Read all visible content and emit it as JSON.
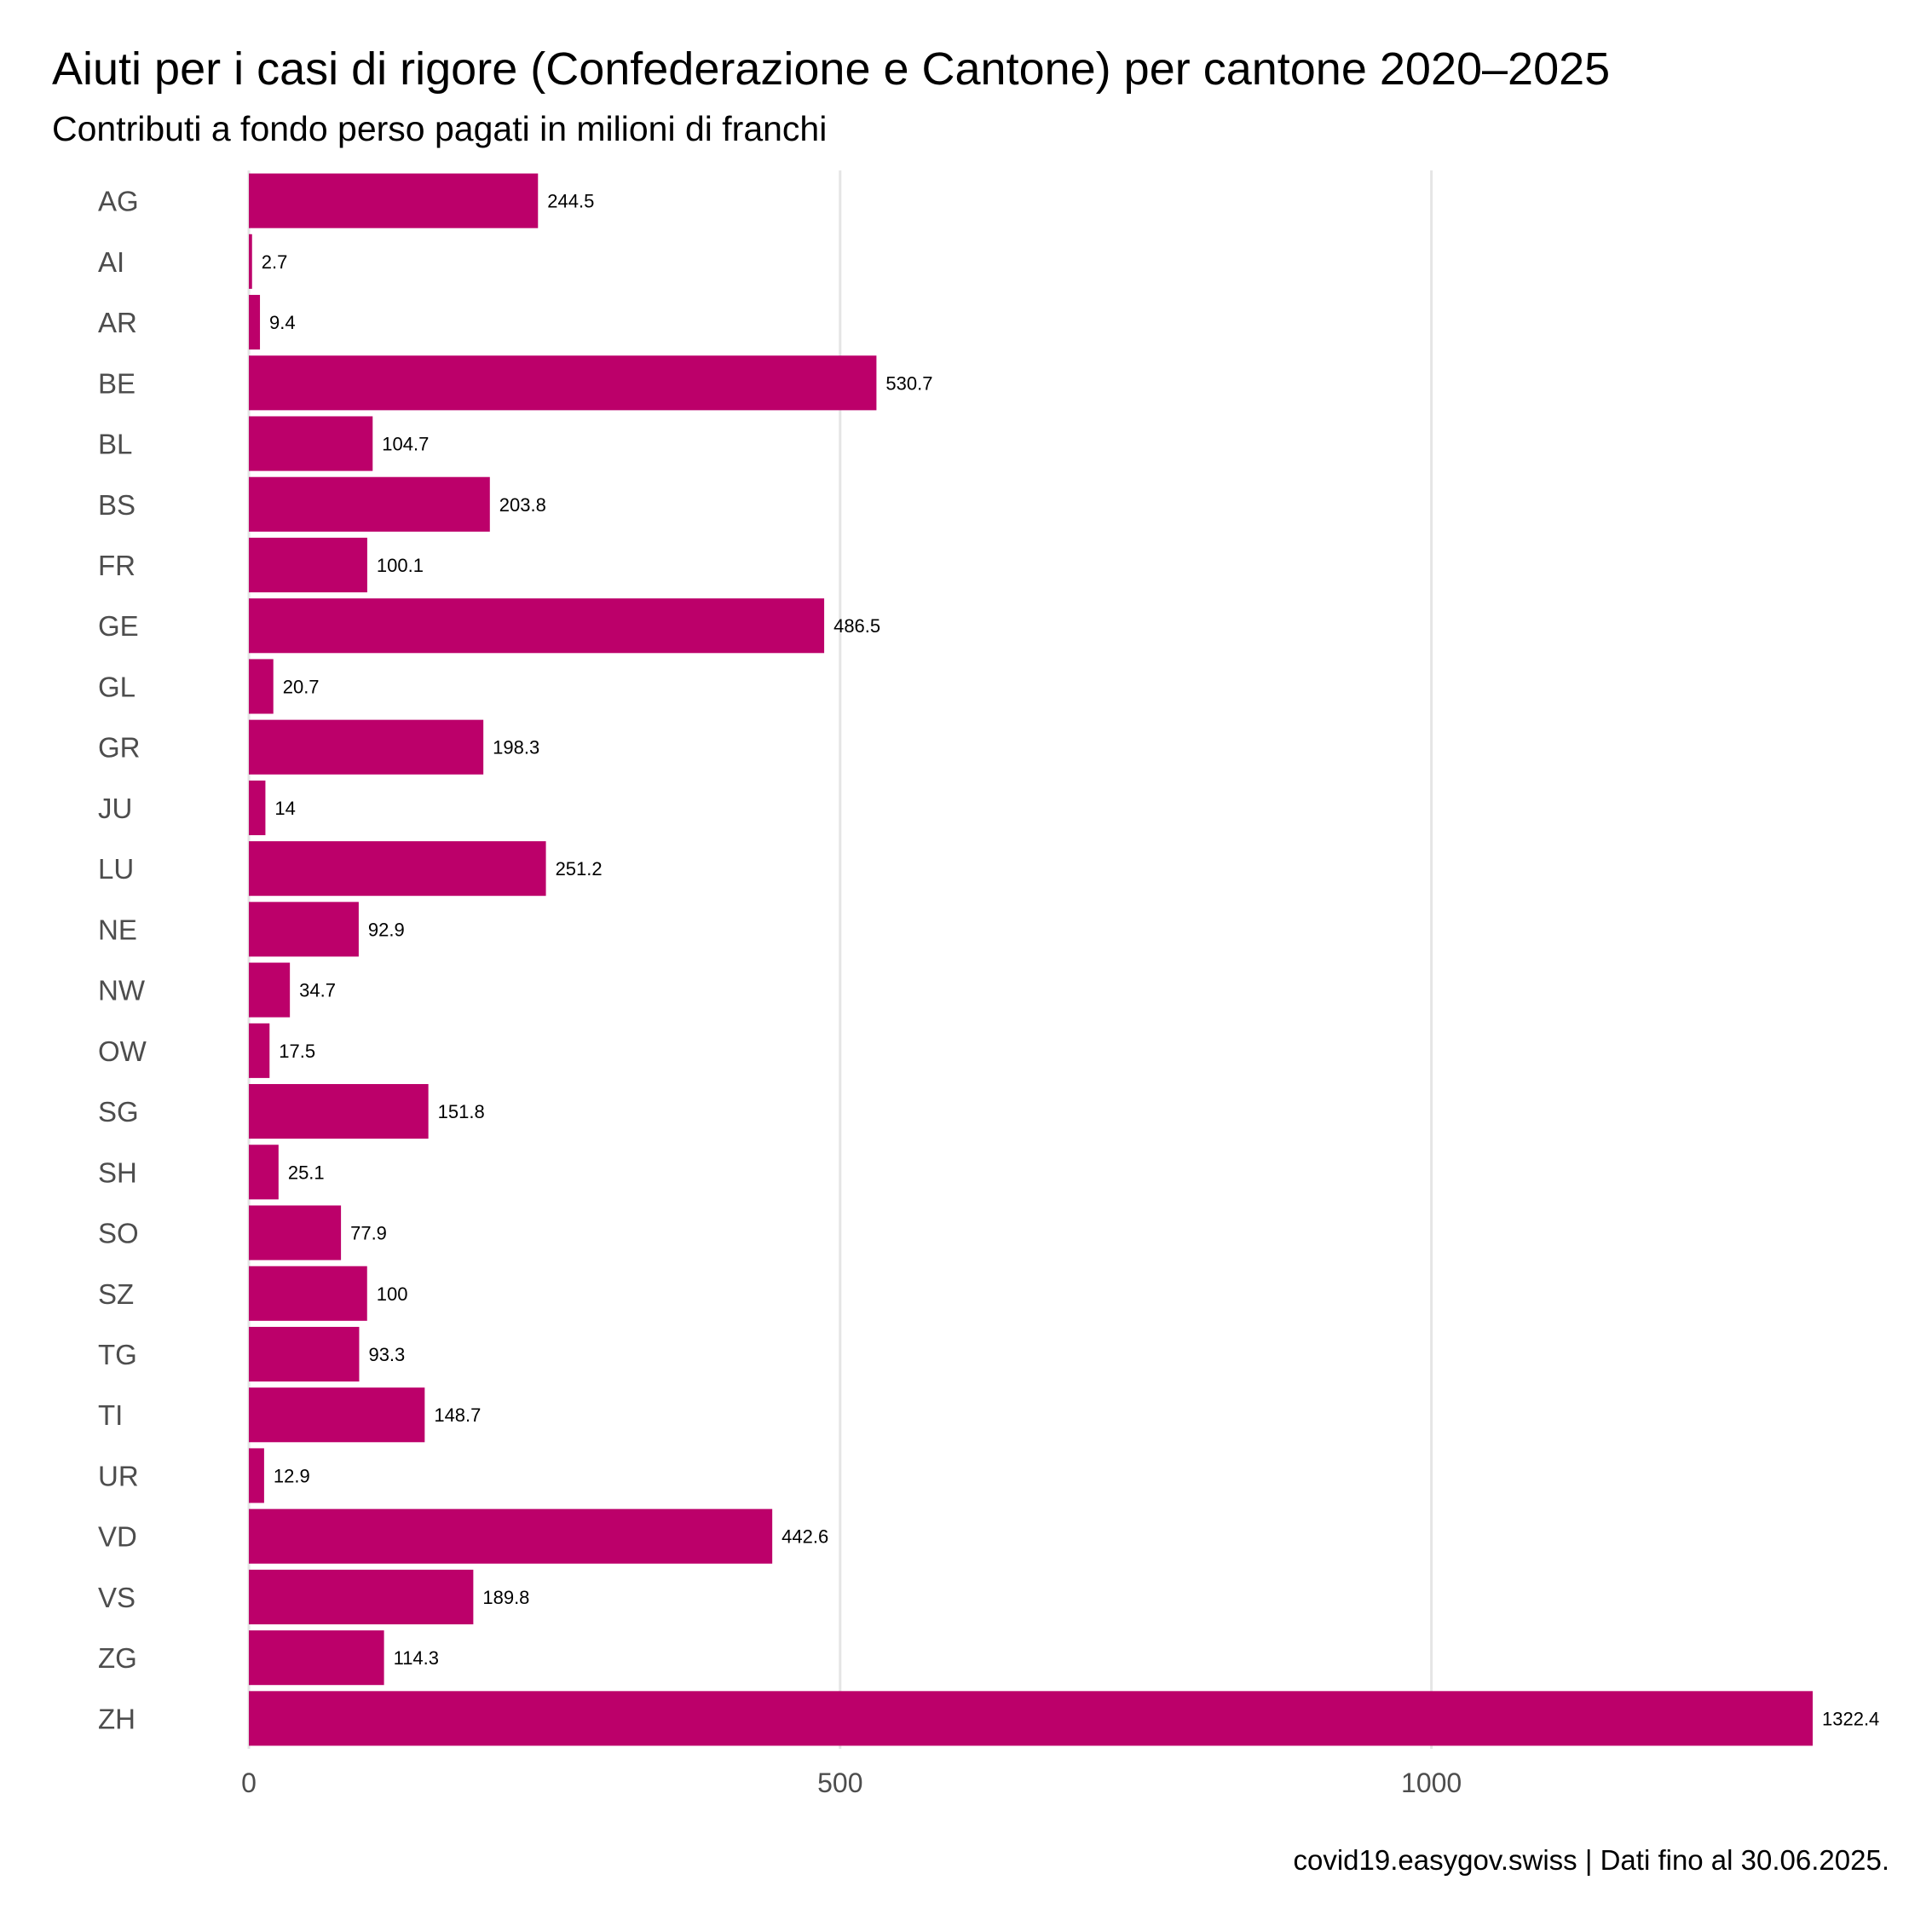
{
  "title": "Aiuti per i casi di rigore (Confederazione e Cantone) per cantone 2020–2025",
  "subtitle": "Contributi a fondo perso pagati in milioni di franchi",
  "caption": "covid19.easygov.swiss | Dati fino al 30.06.2025.",
  "colors": {
    "bar": "#BC006A",
    "grid": "#E5E5E5",
    "axis_text": "#4D4D4D",
    "label_text": "#000000"
  },
  "chart_data": {
    "type": "bar",
    "orientation": "horizontal",
    "categories": [
      "AG",
      "AI",
      "AR",
      "BE",
      "BL",
      "BS",
      "FR",
      "GE",
      "GL",
      "GR",
      "JU",
      "LU",
      "NE",
      "NW",
      "OW",
      "SG",
      "SH",
      "SO",
      "SZ",
      "TG",
      "TI",
      "UR",
      "VD",
      "VS",
      "ZG",
      "ZH"
    ],
    "values": [
      244.5,
      2.7,
      9.4,
      530.7,
      104.7,
      203.8,
      100.1,
      486.5,
      20.7,
      198.3,
      14,
      251.2,
      92.9,
      34.7,
      17.5,
      151.8,
      25.1,
      77.9,
      100,
      93.3,
      148.7,
      12.9,
      442.6,
      189.8,
      114.3,
      1322.4
    ],
    "value_labels": [
      "244.5",
      "2.7",
      "9.4",
      "530.7",
      "104.7",
      "203.8",
      "100.1",
      "486.5",
      "20.7",
      "198.3",
      "14",
      "251.2",
      "92.9",
      "34.7",
      "17.5",
      "151.8",
      "25.1",
      "77.9",
      "100",
      "93.3",
      "148.7",
      "12.9",
      "442.6",
      "189.8",
      "114.3",
      "1322.4"
    ],
    "xticks": [
      0,
      500,
      1000
    ],
    "xtick_labels": [
      "0",
      "500",
      "1000"
    ],
    "xlim": [
      0,
      1322.4
    ],
    "xlabel": "",
    "ylabel": "",
    "grid": true
  }
}
